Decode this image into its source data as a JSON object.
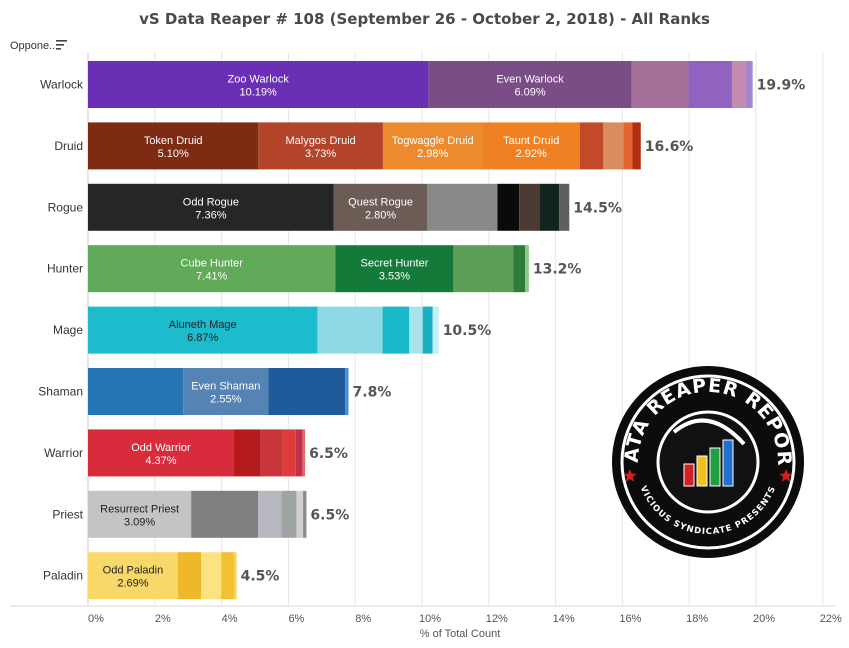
{
  "title": "vS Data Reaper # 108 (September 26 - October 2, 2018) - All Ranks",
  "filter_label": "Oppone..",
  "logo": {
    "top_text": "DATA REAPER REPORT",
    "bottom_text": "VICIOUS SYNDICATE PRESENTS"
  },
  "chart_data": {
    "type": "bar",
    "orientation": "horizontal",
    "stacked": true,
    "xlabel": "% of Total Count",
    "ylabel": "",
    "xlim": [
      0,
      22
    ],
    "x_ticks": [
      "0%",
      "2%",
      "4%",
      "6%",
      "8%",
      "10%",
      "12%",
      "14%",
      "16%",
      "18%",
      "20%",
      "22%"
    ],
    "grid": "vertical",
    "legend": "none",
    "categories": [
      {
        "name": "Warlock",
        "total": "19.9%",
        "segments": [
          {
            "label": "Zoo Warlock",
            "value": 10.19,
            "value_label": "10.19%",
            "color": "#6a2fb5"
          },
          {
            "label": "Even Warlock",
            "value": 6.09,
            "value_label": "6.09%",
            "color": "#7a4d86"
          },
          {
            "label": "",
            "value": 1.7,
            "value_label": "",
            "color": "#a57099"
          },
          {
            "label": "",
            "value": 1.3,
            "value_label": "",
            "color": "#9063c0"
          },
          {
            "label": "",
            "value": 0.4,
            "value_label": "",
            "color": "#c48aaf"
          },
          {
            "label": "",
            "value": 0.22,
            "value_label": "",
            "color": "#a386d2"
          }
        ]
      },
      {
        "name": "Druid",
        "total": "16.6%",
        "segments": [
          {
            "label": "Token Druid",
            "value": 5.1,
            "value_label": "5.10%",
            "color": "#7d2b12"
          },
          {
            "label": "Malygos Druid",
            "value": 3.73,
            "value_label": "3.73%",
            "color": "#b3442a"
          },
          {
            "label": "Togwaggle Druid",
            "value": 2.98,
            "value_label": "2.98%",
            "color": "#ee8a2e"
          },
          {
            "label": "Taunt Druid",
            "value": 2.92,
            "value_label": "2.92%",
            "color": "#f08123"
          },
          {
            "label": "",
            "value": 0.7,
            "value_label": "",
            "color": "#c24a28"
          },
          {
            "label": "",
            "value": 0.6,
            "value_label": "",
            "color": "#d98c60"
          },
          {
            "label": "",
            "value": 0.27,
            "value_label": "",
            "color": "#e4662e"
          },
          {
            "label": "",
            "value": 0.25,
            "value_label": "",
            "color": "#b22d0f"
          }
        ]
      },
      {
        "name": "Rogue",
        "total": "14.5%",
        "segments": [
          {
            "label": "Odd Rogue",
            "value": 7.36,
            "value_label": "7.36%",
            "color": "#262626"
          },
          {
            "label": "Quest Rogue",
            "value": 2.8,
            "value_label": "2.80%",
            "color": "#6b5c56"
          },
          {
            "label": "",
            "value": 2.1,
            "value_label": "",
            "color": "#898989"
          },
          {
            "label": "",
            "value": 0.65,
            "value_label": "",
            "color": "#0a0a0a"
          },
          {
            "label": "",
            "value": 0.6,
            "value_label": "",
            "color": "#4a3b35"
          },
          {
            "label": "",
            "value": 0.6,
            "value_label": "",
            "color": "#102420"
          },
          {
            "label": "",
            "value": 0.3,
            "value_label": "",
            "color": "#5f5f5f"
          }
        ]
      },
      {
        "name": "Hunter",
        "total": "13.2%",
        "segments": [
          {
            "label": "Cube Hunter",
            "value": 7.41,
            "value_label": "7.41%",
            "color": "#60aa59"
          },
          {
            "label": "Secret Hunter",
            "value": 3.53,
            "value_label": "3.53%",
            "color": "#147a3a"
          },
          {
            "label": "",
            "value": 1.8,
            "value_label": "",
            "color": "#5e9f57"
          },
          {
            "label": "",
            "value": 0.35,
            "value_label": "",
            "color": "#2f7c3a"
          },
          {
            "label": "",
            "value": 0.11,
            "value_label": "",
            "color": "#8fc985"
          }
        ]
      },
      {
        "name": "Mage",
        "total": "10.5%",
        "segments": [
          {
            "label": "Aluneth Mage",
            "value": 6.87,
            "value_label": "6.87%",
            "color": "#1cbccc",
            "dark": true
          },
          {
            "label": "",
            "value": 1.95,
            "value_label": "",
            "color": "#8fd9e6"
          },
          {
            "label": "",
            "value": 0.8,
            "value_label": "",
            "color": "#18b8c8"
          },
          {
            "label": "",
            "value": 0.4,
            "value_label": "",
            "color": "#a9e3ec"
          },
          {
            "label": "",
            "value": 0.3,
            "value_label": "",
            "color": "#19b0c4"
          },
          {
            "label": "",
            "value": 0.18,
            "value_label": "",
            "color": "#c8eef4"
          }
        ]
      },
      {
        "name": "Shaman",
        "total": "7.8%",
        "segments": [
          {
            "label": "",
            "value": 2.85,
            "value_label": "",
            "color": "#2676b6"
          },
          {
            "label": "Even Shaman",
            "value": 2.55,
            "value_label": "2.55%",
            "color": "#5483b4"
          },
          {
            "label": "",
            "value": 2.3,
            "value_label": "",
            "color": "#1f5b9a"
          },
          {
            "label": "",
            "value": 0.1,
            "value_label": "",
            "color": "#4a8cc8"
          }
        ]
      },
      {
        "name": "Warrior",
        "total": "6.5%",
        "segments": [
          {
            "label": "Odd Warrior",
            "value": 4.37,
            "value_label": "4.37%",
            "color": "#d82b3c"
          },
          {
            "label": "",
            "value": 0.8,
            "value_label": "",
            "color": "#b51a1c"
          },
          {
            "label": "",
            "value": 0.65,
            "value_label": "",
            "color": "#c8363c"
          },
          {
            "label": "",
            "value": 0.4,
            "value_label": "",
            "color": "#df3b3b"
          },
          {
            "label": "",
            "value": 0.2,
            "value_label": "",
            "color": "#c0304d"
          },
          {
            "label": "",
            "value": 0.08,
            "value_label": "",
            "color": "#e46a6a"
          }
        ]
      },
      {
        "name": "Priest",
        "total": "6.5%",
        "segments": [
          {
            "label": "Resurrect Priest",
            "value": 3.09,
            "value_label": "3.09%",
            "color": "#c4c4c4",
            "dark": true
          },
          {
            "label": "",
            "value": 2.0,
            "value_label": "",
            "color": "#7f7f7f"
          },
          {
            "label": "",
            "value": 0.7,
            "value_label": "",
            "color": "#b8b8c0"
          },
          {
            "label": "",
            "value": 0.45,
            "value_label": "",
            "color": "#9ea4a4"
          },
          {
            "label": "",
            "value": 0.2,
            "value_label": "",
            "color": "#d0d0d0"
          },
          {
            "label": "",
            "value": 0.1,
            "value_label": "",
            "color": "#8a8a8a"
          }
        ]
      },
      {
        "name": "Paladin",
        "total": "4.5%",
        "segments": [
          {
            "label": "Odd Paladin",
            "value": 2.69,
            "value_label": "2.69%",
            "color": "#f9d86a",
            "dark": true
          },
          {
            "label": "",
            "value": 0.7,
            "value_label": "",
            "color": "#efb82a"
          },
          {
            "label": "",
            "value": 0.6,
            "value_label": "",
            "color": "#fbe37f"
          },
          {
            "label": "",
            "value": 0.38,
            "value_label": "",
            "color": "#f2c030"
          },
          {
            "label": "",
            "value": 0.08,
            "value_label": "",
            "color": "#f6d65a"
          }
        ]
      }
    ]
  }
}
